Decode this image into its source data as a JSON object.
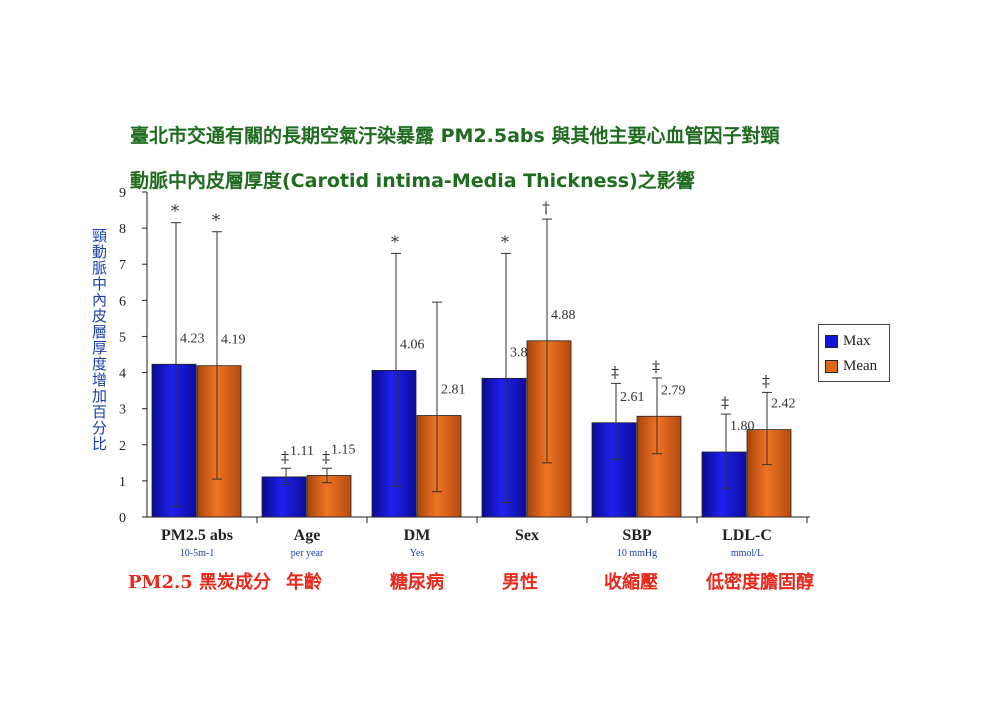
{
  "title": {
    "line1": "臺北市交通有關的長期空氣汙染暴露 PM2.5abs 與其他主要心血管因子對頸",
    "line2": "動脈中內皮層厚度(Carotid intima-Media Thickness)之影響"
  },
  "chinese_categories": [
    "PM2.5 黑炭成分",
    "年齡",
    "糖尿病",
    "男性",
    "收縮壓",
    "低密度膽固醇"
  ],
  "colors": {
    "max": "#1414d8",
    "mean": "#e0661c",
    "title": "#1f6b1f",
    "ylabel": "#1a3fa8",
    "unit": "#1a3fa8",
    "zh": "#e8291b"
  },
  "chart_data": {
    "type": "bar",
    "ylabel": "頸動脈中內皮層厚度增加百分比",
    "ylim": [
      0,
      9
    ],
    "yticks": [
      "0",
      "1",
      "2",
      "3",
      "4",
      "5",
      "6",
      "7",
      "8",
      "9"
    ],
    "categories": [
      "PM2.5 abs",
      "Age",
      "DM",
      "Sex",
      "SBP",
      "LDL-C"
    ],
    "category_units": [
      "10-5m-1",
      "per year",
      "Yes",
      "",
      "10 mmHg",
      "mmol/L"
    ],
    "legend_position": "right",
    "series": [
      {
        "name": "Max",
        "values": [
          4.23,
          1.11,
          4.06,
          3.84,
          2.61,
          1.8
        ],
        "labels": [
          "4.23",
          "1.11",
          "4.06",
          "3.84",
          "2.61",
          "1.80"
        ],
        "error_low": [
          0.3,
          0.9,
          0.85,
          0.4,
          1.6,
          0.8
        ],
        "error_high": [
          8.15,
          1.35,
          7.3,
          7.3,
          3.7,
          2.85
        ],
        "markers": [
          "*",
          "‡",
          "*",
          "*",
          "‡",
          "‡"
        ]
      },
      {
        "name": "Mean",
        "values": [
          4.19,
          1.15,
          2.81,
          4.88,
          2.79,
          2.42
        ],
        "labels": [
          "4.19",
          "1.15",
          "2.81",
          "4.88",
          "2.79",
          "2.42"
        ],
        "error_low": [
          1.05,
          0.95,
          0.7,
          1.5,
          1.75,
          1.45
        ],
        "error_high": [
          7.9,
          1.35,
          5.95,
          8.25,
          3.85,
          3.45
        ],
        "markers": [
          "*",
          "‡",
          "",
          "†",
          "‡",
          "‡"
        ]
      }
    ]
  }
}
